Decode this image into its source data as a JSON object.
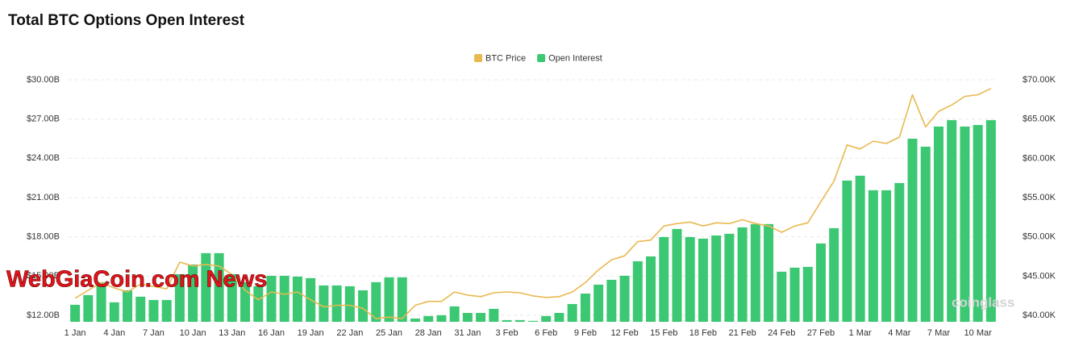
{
  "chart_data": {
    "type": "bar",
    "title": "Total BTC Options Open Interest",
    "categories": [
      "1 Jan",
      null,
      null,
      "4 Jan",
      null,
      null,
      "7 Jan",
      null,
      null,
      "10 Jan",
      null,
      null,
      "13 Jan",
      null,
      null,
      "16 Jan",
      null,
      null,
      "19 Jan",
      null,
      null,
      "22 Jan",
      null,
      null,
      "25 Jan",
      null,
      null,
      "28 Jan",
      null,
      null,
      "31 Jan",
      null,
      null,
      "3 Feb",
      null,
      null,
      "6 Feb",
      null,
      null,
      "9 Feb",
      null,
      null,
      "12 Feb",
      null,
      null,
      "15 Feb",
      null,
      null,
      "18 Feb",
      null,
      null,
      "21 Feb",
      null,
      null,
      "24 Feb",
      null,
      null,
      "27 Feb",
      null,
      null,
      "1 Mar",
      null,
      null,
      "4 Mar",
      null,
      null,
      "7 Mar",
      null,
      null,
      "10 Mar",
      null
    ],
    "series": [
      {
        "name": "BTC Price",
        "color": "#e8b950",
        "axis": "y2",
        "type": "line",
        "values": [
          42.2,
          43.2,
          44.2,
          43.5,
          43.0,
          44.0,
          43.7,
          43.4,
          46.8,
          46.3,
          46.5,
          46.3,
          45.2,
          43.2,
          42.0,
          43.0,
          42.7,
          43.0,
          42.0,
          41.1,
          41.3,
          41.3,
          40.9,
          39.6,
          39.8,
          39.6,
          41.3,
          41.8,
          41.8,
          43.0,
          42.6,
          42.4,
          42.9,
          43.0,
          42.9,
          42.5,
          42.3,
          42.4,
          43.0,
          44.2,
          45.8,
          47.1,
          47.6,
          49.4,
          49.6,
          51.4,
          51.7,
          51.9,
          51.4,
          51.8,
          51.7,
          52.2,
          51.7,
          51.4,
          50.6,
          51.4,
          51.8,
          54.5,
          57.1,
          61.7,
          61.2,
          62.2,
          61.9,
          62.7,
          68.1,
          64.0,
          66.0,
          66.8,
          67.9,
          68.1,
          68.9
        ]
      },
      {
        "name": "Open Interest",
        "color": "#3cc873",
        "type": "bar",
        "values": [
          12.8,
          13.54,
          14.53,
          12.99,
          13.91,
          13.42,
          13.17,
          13.17,
          15.14,
          15.88,
          16.75,
          16.75,
          15.14,
          14.53,
          14.22,
          15.02,
          15.02,
          14.96,
          14.84,
          14.28,
          14.28,
          14.22,
          13.91,
          14.53,
          14.9,
          14.9,
          11.75,
          11.94,
          12.0,
          12.68,
          12.18,
          12.18,
          12.49,
          11.63,
          11.63,
          11.57,
          11.94,
          12.18,
          12.86,
          13.66,
          14.34,
          14.71,
          15.02,
          16.13,
          16.5,
          17.98,
          18.6,
          17.98,
          17.86,
          18.1,
          18.23,
          18.72,
          18.97,
          18.97,
          15.33,
          15.64,
          15.7,
          17.49,
          18.66,
          22.3,
          22.67,
          21.56,
          21.56,
          22.11,
          25.5,
          24.89,
          26.43,
          26.92,
          26.43,
          26.55,
          26.92
        ]
      }
    ],
    "ylim": [
      11.5,
      30
    ],
    "yticks": [
      {
        "value": 12,
        "label": "$12.00B"
      },
      {
        "value": 15,
        "label": "$15.00B"
      },
      {
        "value": 18,
        "label": "$18.00B"
      },
      {
        "value": 21,
        "label": "$21.00B"
      },
      {
        "value": 24,
        "label": "$24.00B"
      },
      {
        "value": 27,
        "label": "$27.00B"
      },
      {
        "value": 30,
        "label": "$30.00B"
      }
    ],
    "y2lim": [
      39.2,
      70
    ],
    "y2ticks": [
      {
        "value": 40,
        "label": "$40.00K"
      },
      {
        "value": 45,
        "label": "$45.00K"
      },
      {
        "value": 50,
        "label": "$50.00K"
      },
      {
        "value": 55,
        "label": "$55.00K"
      },
      {
        "value": 60,
        "label": "$60.00K"
      },
      {
        "value": 65,
        "label": "$65.00K"
      },
      {
        "value": 70,
        "label": "$70.00K"
      }
    ],
    "grid": true,
    "legend": "top",
    "watermarks": [
      "WebGiaCoin.com News",
      "coinglass"
    ]
  }
}
